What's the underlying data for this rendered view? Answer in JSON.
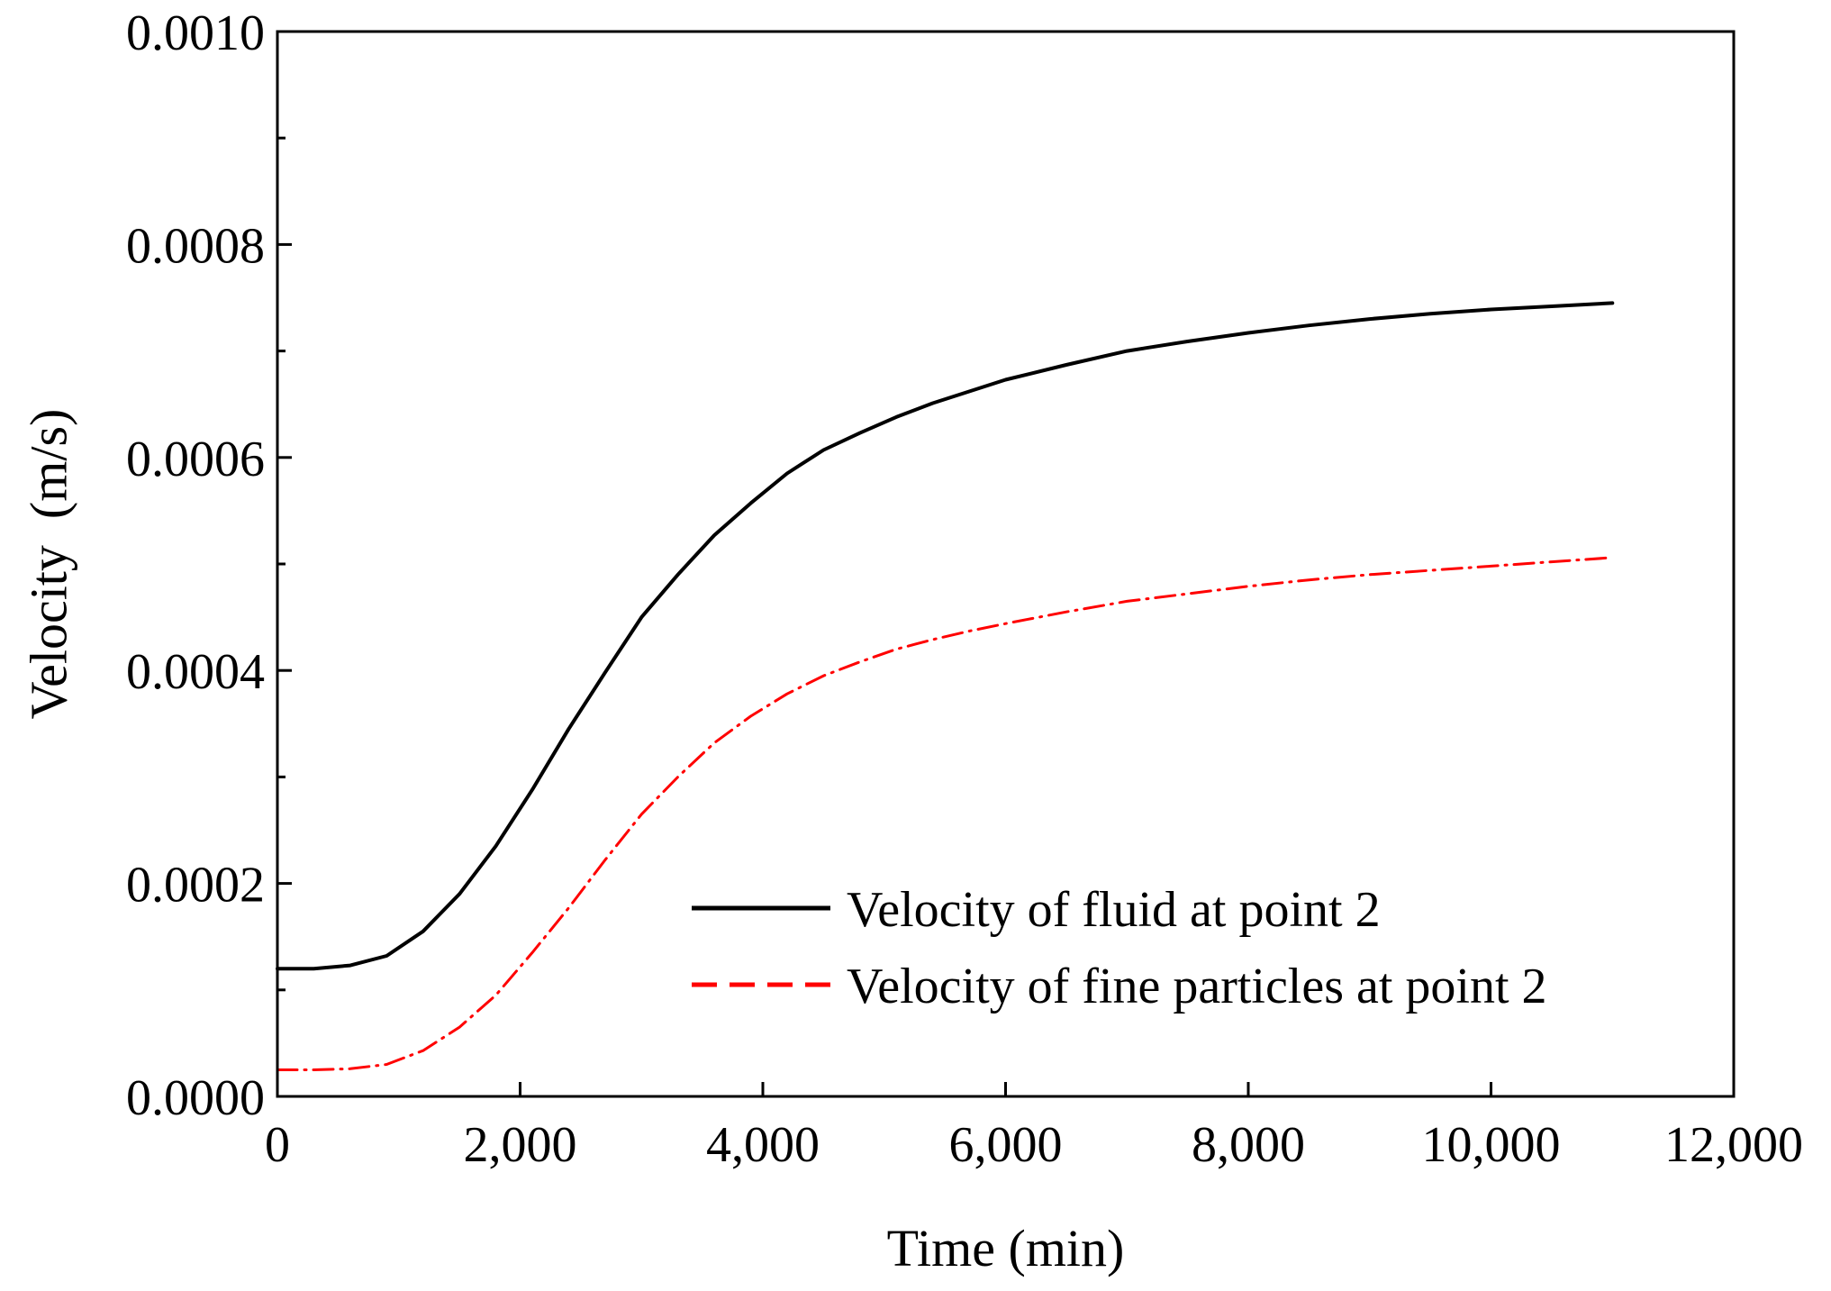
{
  "chart_data": {
    "type": "line",
    "title": "",
    "xlabel": "Time (min)",
    "ylabel": "Velocity  (m/s)",
    "xlim": [
      0,
      12000
    ],
    "ylim": [
      0,
      0.001
    ],
    "grid": false,
    "x_ticks": [
      0,
      2000,
      4000,
      6000,
      8000,
      10000,
      12000
    ],
    "x_tick_labels": [
      "0",
      "2,000",
      "4,000",
      "6,000",
      "8,000",
      "10,000",
      "12,000"
    ],
    "y_ticks": [
      0,
      0.0002,
      0.0004,
      0.0006,
      0.0008,
      0.001
    ],
    "y_tick_labels": [
      "0.0000",
      "0.0002",
      "0.0004",
      "0.0006",
      "0.0008",
      "0.0010"
    ],
    "y_minor_ticks": [
      0.0001,
      0.0003,
      0.0005,
      0.0007,
      0.0009
    ],
    "legend_position": "lower-right",
    "series": [
      {
        "name": "Velocity of fluid at point 2",
        "color": "#000000",
        "style": "solid",
        "x": [
          0,
          300,
          600,
          900,
          1200,
          1500,
          1800,
          2100,
          2400,
          2700,
          3000,
          3300,
          3600,
          3900,
          4200,
          4500,
          4800,
          5100,
          5400,
          5700,
          6000,
          6500,
          7000,
          7500,
          8000,
          8500,
          9000,
          9500,
          10000,
          10500,
          11000
        ],
        "y": [
          0.00012,
          0.00012,
          0.000123,
          0.000132,
          0.000155,
          0.00019,
          0.000235,
          0.000288,
          0.000345,
          0.000398,
          0.00045,
          0.00049,
          0.000527,
          0.000557,
          0.000585,
          0.000607,
          0.000623,
          0.000638,
          0.000651,
          0.000662,
          0.000673,
          0.000687,
          0.0007,
          0.000709,
          0.000717,
          0.000724,
          0.00073,
          0.000735,
          0.000739,
          0.000742,
          0.000745
        ]
      },
      {
        "name": "Velocity of fine particles at point 2",
        "color": "#ff0000",
        "style": "dashed",
        "x": [
          0,
          300,
          600,
          900,
          1200,
          1500,
          1800,
          2100,
          2400,
          2700,
          3000,
          3300,
          3600,
          3900,
          4200,
          4500,
          4800,
          5100,
          5400,
          5700,
          6000,
          6500,
          7000,
          7500,
          8000,
          8500,
          9000,
          9500,
          10000,
          10500,
          11000
        ],
        "y": [
          2.5e-05,
          2.5e-05,
          2.6e-05,
          3e-05,
          4.3e-05,
          6.5e-05,
          9.5e-05,
          0.000135,
          0.000177,
          0.000222,
          0.000265,
          0.0003,
          0.000332,
          0.000357,
          0.000378,
          0.000395,
          0.000408,
          0.00042,
          0.000429,
          0.000437,
          0.000444,
          0.000455,
          0.000465,
          0.000472,
          0.000479,
          0.000485,
          0.00049,
          0.000494,
          0.000498,
          0.000502,
          0.000506
        ]
      }
    ]
  }
}
